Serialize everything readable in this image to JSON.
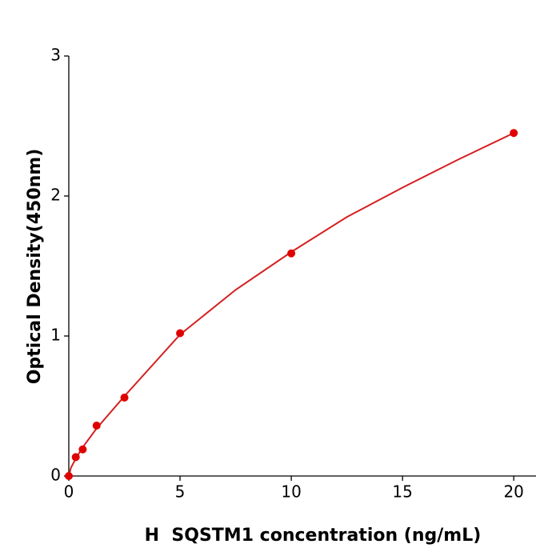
{
  "chart_data": {
    "type": "scatter",
    "x_label": "H  SQSTM1 concentration (ng/mL)",
    "y_label": "Optical Density(450nm)",
    "x": [
      0,
      0.3125,
      0.625,
      1.25,
      2.5,
      5,
      10,
      20
    ],
    "values": [
      0.0,
      0.135,
      0.19,
      0.36,
      0.56,
      1.02,
      1.59,
      2.45
    ],
    "color": "#e00000",
    "fit": {
      "x": [
        0,
        0.1,
        0.3,
        0.6,
        1.25,
        2.5,
        5,
        7.5,
        10,
        12.5,
        15,
        17.5,
        20
      ],
      "values": [
        0,
        0.06,
        0.12,
        0.2,
        0.34,
        0.57,
        1.01,
        1.33,
        1.6,
        1.85,
        2.06,
        2.26,
        2.45
      ],
      "color": "#d42020"
    },
    "xlim": [
      0,
      21
    ],
    "xticks": [
      0,
      5,
      10,
      15,
      20
    ],
    "ylim": [
      0,
      3
    ],
    "yticks": [
      0,
      1,
      2,
      3
    ]
  }
}
